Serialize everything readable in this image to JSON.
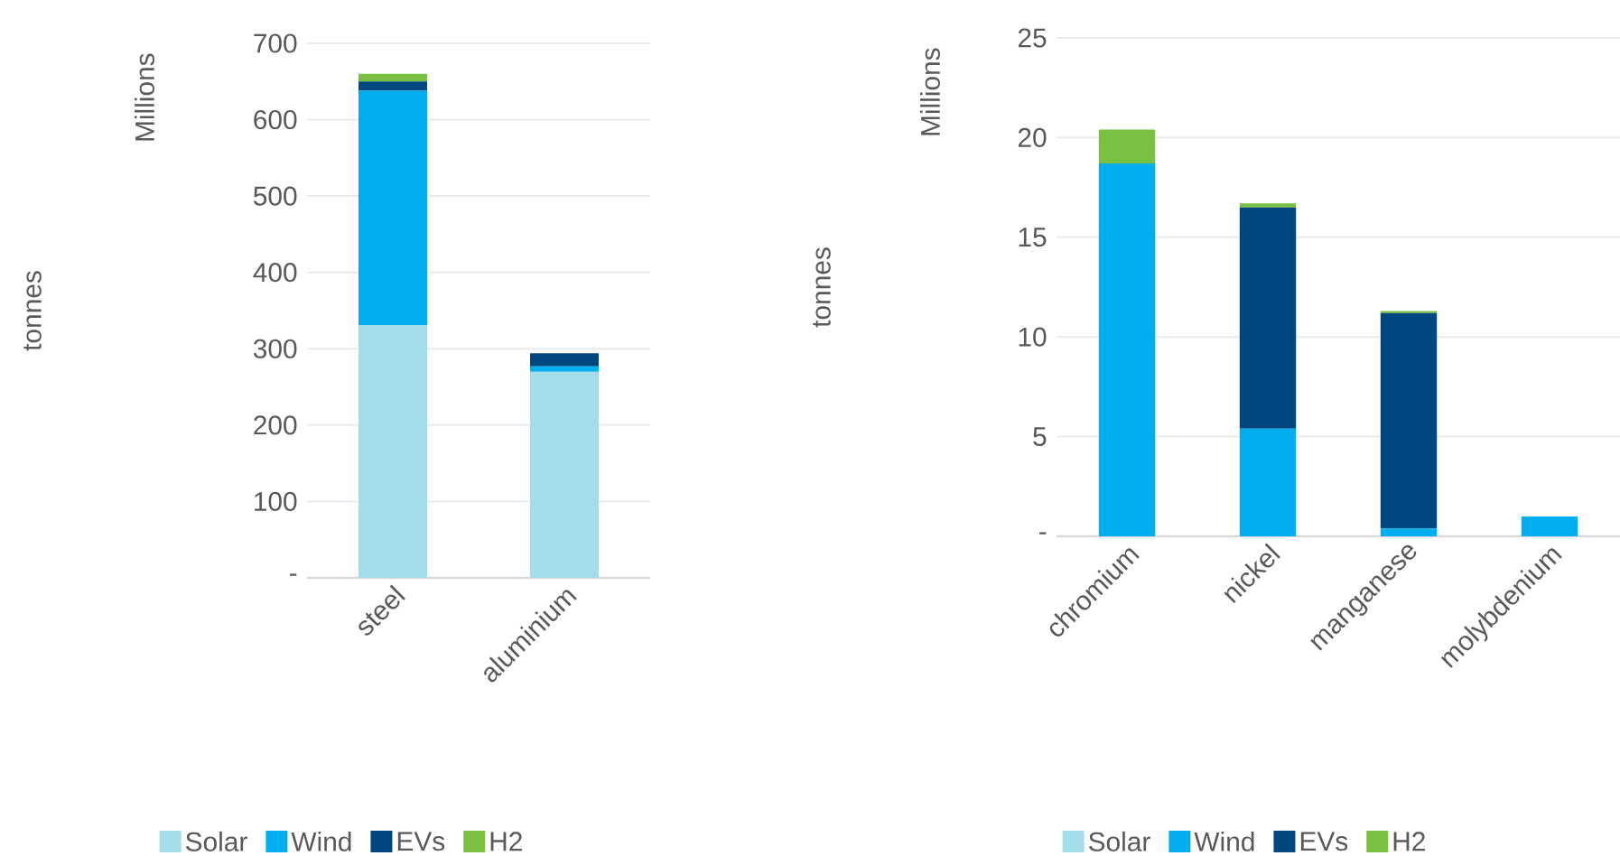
{
  "chart_data": [
    {
      "type": "bar",
      "stacked": true,
      "ylabel": "tonnes",
      "annotations": [
        "Millions"
      ],
      "categories": [
        "steel",
        "aluminium"
      ],
      "series": [
        {
          "name": "Solar",
          "color": "#a3dde9",
          "values": [
            331,
            270
          ]
        },
        {
          "name": "Wind",
          "color": "#00adef",
          "values": [
            307,
            7
          ]
        },
        {
          "name": "EVs",
          "color": "#00467f",
          "values": [
            12,
            17
          ]
        },
        {
          "name": "H2",
          "color": "#7ac143",
          "values": [
            10,
            0
          ]
        }
      ],
      "ylim": [
        0,
        700
      ],
      "yticks": [
        {
          "value": 0,
          "label": "-"
        },
        100,
        200,
        300,
        400,
        500,
        600,
        700
      ],
      "grid": "y",
      "legend": "bottom"
    },
    {
      "type": "bar",
      "stacked": true,
      "ylabel": "tonnes",
      "annotations": [
        "Millions"
      ],
      "categories": [
        "chromium",
        "nickel",
        "manganese",
        "molybdenium"
      ],
      "series": [
        {
          "name": "Solar",
          "color": "#a3dde9",
          "values": [
            0,
            0,
            0,
            0
          ]
        },
        {
          "name": "Wind",
          "color": "#00adef",
          "values": [
            18.7,
            5.4,
            0.4,
            1.0
          ]
        },
        {
          "name": "EVs",
          "color": "#00467f",
          "values": [
            0,
            11.1,
            10.8,
            0
          ]
        },
        {
          "name": "H2",
          "color": "#7ac143",
          "values": [
            1.7,
            0.2,
            0.1,
            0
          ]
        }
      ],
      "ylim": [
        0,
        25
      ],
      "yticks": [
        {
          "value": 0,
          "label": "-"
        },
        5,
        10,
        15,
        20,
        25
      ],
      "grid": "y",
      "legend": "bottom"
    }
  ]
}
